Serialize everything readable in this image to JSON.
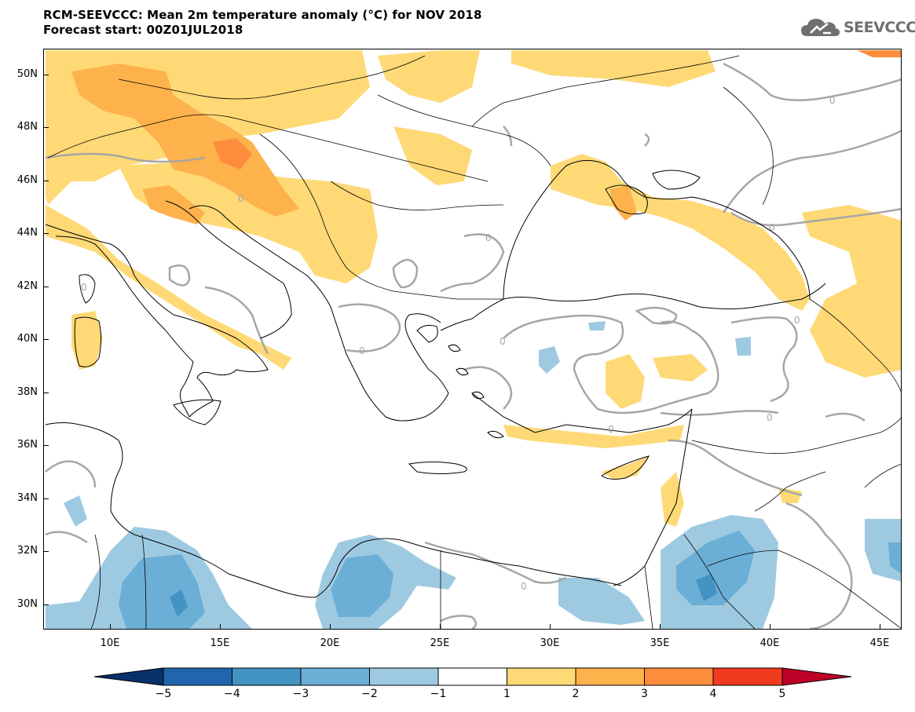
{
  "header": {
    "title": "RCM-SEEVCCC: Mean 2m temperature anomaly (°C) for NOV 2018",
    "subtitle": "Forecast start: 00Z01JUL2018",
    "logo_text": "SEEVCCC"
  },
  "map": {
    "lat_labels": [
      "50N",
      "48N",
      "46N",
      "44N",
      "42N",
      "40N",
      "38N",
      "36N",
      "34N",
      "32N",
      "30N"
    ],
    "lon_labels": [
      "10E",
      "15E",
      "20E",
      "25E",
      "30E",
      "35E",
      "40E",
      "45E"
    ],
    "contour_labels": [
      "0",
      "0",
      "0",
      "0",
      "0",
      "0",
      "0",
      "0",
      "0",
      "0",
      "0"
    ]
  },
  "colorbar": {
    "ticks": [
      "−5",
      "−4",
      "−3",
      "−2",
      "−1",
      "1",
      "2",
      "3",
      "4",
      "5"
    ],
    "colors": [
      "#08306b",
      "#2166ac",
      "#4393c3",
      "#6baed6",
      "#9ecae1",
      "#ffffff",
      "#fed976",
      "#feb24c",
      "#fd8d3c",
      "#f03b20",
      "#bd0026"
    ]
  }
}
